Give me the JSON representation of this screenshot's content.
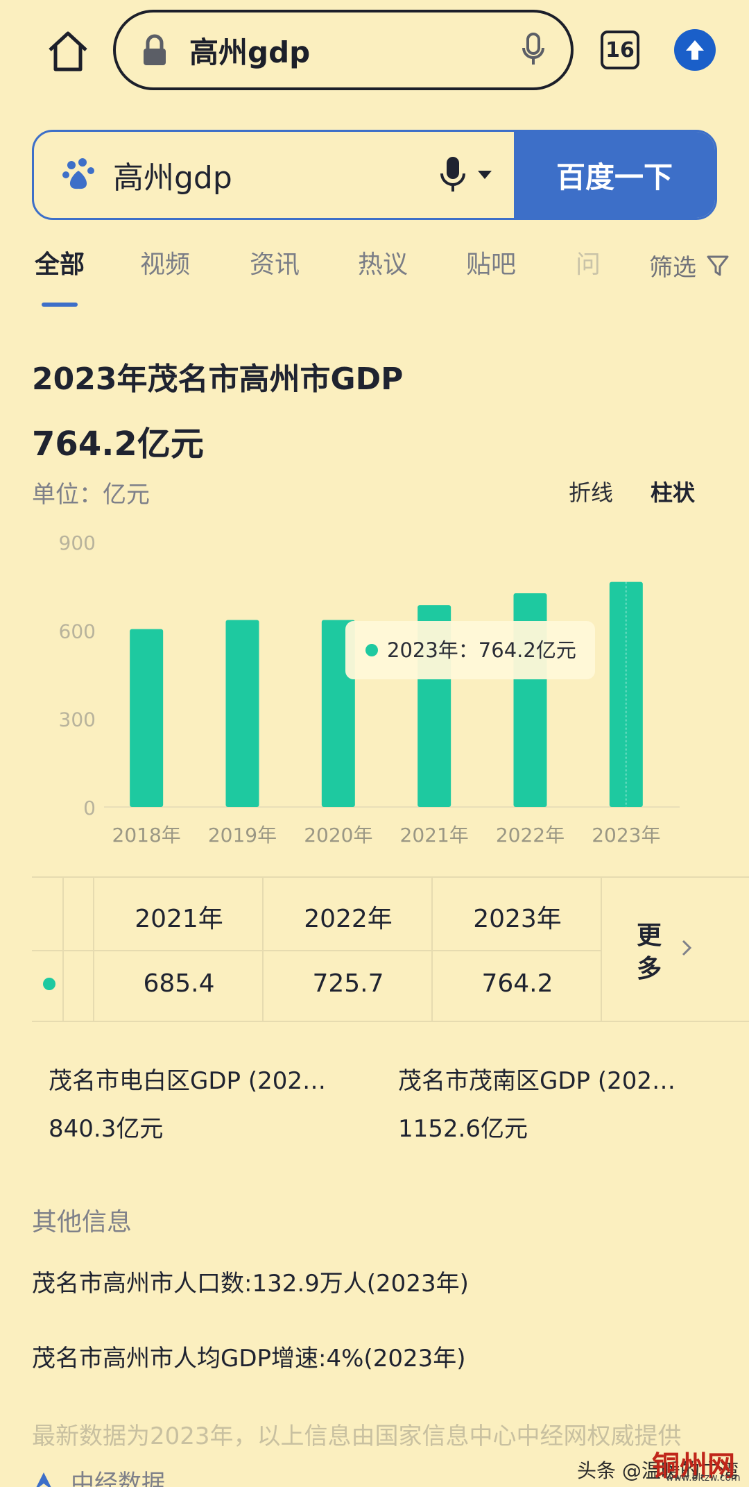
{
  "browser": {
    "url_text": "高州gdp",
    "tab_count": "16"
  },
  "search": {
    "query": "高州gdp",
    "submit_label": "百度一下"
  },
  "tabs": {
    "items": [
      "全部",
      "视频",
      "资讯",
      "热议",
      "贴吧",
      "问"
    ],
    "active": "全部",
    "filter_label": "筛选"
  },
  "card": {
    "title": "2023年茂名市高州市GDP",
    "value": "764.2亿元",
    "unit_label": "单位：亿元",
    "toggle_line": "折线",
    "toggle_bar": "柱状",
    "tooltip": "2023年：764.2亿元"
  },
  "chart_data": {
    "type": "bar",
    "categories": [
      "2018年",
      "2019年",
      "2020年",
      "2021年",
      "2022年",
      "2023年"
    ],
    "values": [
      604,
      635,
      635,
      685.4,
      725.7,
      764.2
    ],
    "ylim": [
      0,
      900
    ],
    "yticks": [
      "0",
      "300",
      "600",
      "900"
    ],
    "bar_color": "#1ec9a0",
    "grid": false
  },
  "table": {
    "headers": [
      "2021年",
      "2022年",
      "2023年"
    ],
    "values": [
      "685.4",
      "725.7",
      "764.2"
    ],
    "more_label": "更多"
  },
  "related": [
    {
      "title": "茂名市电白区GDP (202…",
      "value": "840.3亿元"
    },
    {
      "title": "茂名市茂南区GDP (202…",
      "value": "1152.6亿元"
    }
  ],
  "other": {
    "heading": "其他信息",
    "facts": [
      "茂名市高州市人口数:132.9万人(2023年)",
      "茂名市高州市人均GDP增速:4%(2023年)"
    ],
    "source_note": "最新数据为2023年，以上信息由国家信息中心中经网权威提供",
    "provider": "中经数据"
  },
  "watermark": {
    "text": "头条 @温暖的广湾",
    "site_name": "铜州网",
    "site_url": "www.bltzw.com"
  },
  "colors": {
    "background": "#fbefbf",
    "accent": "#3d6fc8",
    "bar": "#1ec9a0"
  }
}
